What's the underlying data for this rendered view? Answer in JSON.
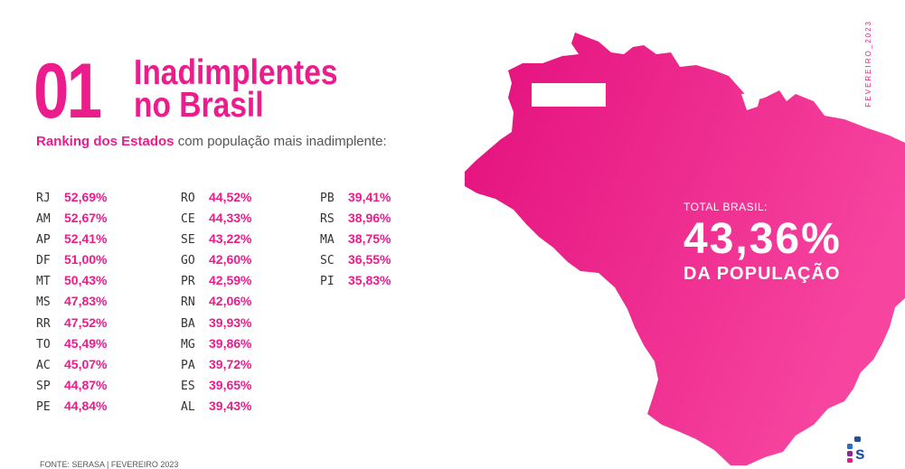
{
  "heading": {
    "number": "01",
    "title_line1": "Inadimplentes",
    "title_line2": "no Brasil"
  },
  "subtitle": {
    "highlight": "Ranking dos Estados",
    "rest": "com população mais inadimplente:"
  },
  "ranking": {
    "col1": [
      {
        "uf": "RJ",
        "pct": "52,69%"
      },
      {
        "uf": "AM",
        "pct": "52,67%"
      },
      {
        "uf": "AP",
        "pct": "52,41%"
      },
      {
        "uf": "DF",
        "pct": "51,00%"
      },
      {
        "uf": "MT",
        "pct": "50,43%"
      },
      {
        "uf": "MS",
        "pct": "47,83%"
      },
      {
        "uf": "RR",
        "pct": "47,52%"
      },
      {
        "uf": "TO",
        "pct": "45,49%"
      },
      {
        "uf": "AC",
        "pct": "45,07%"
      },
      {
        "uf": "SP",
        "pct": "44,87%"
      },
      {
        "uf": "PE",
        "pct": "44,84%"
      }
    ],
    "col2": [
      {
        "uf": "RO",
        "pct": "44,52%"
      },
      {
        "uf": "CE",
        "pct": "44,33%"
      },
      {
        "uf": "SE",
        "pct": "43,22%"
      },
      {
        "uf": "GO",
        "pct": "42,60%"
      },
      {
        "uf": "PR",
        "pct": "42,59%"
      },
      {
        "uf": "RN",
        "pct": "42,06%"
      },
      {
        "uf": "BA",
        "pct": "39,93%"
      },
      {
        "uf": "MG",
        "pct": "39,86%"
      },
      {
        "uf": "PA",
        "pct": "39,72%"
      },
      {
        "uf": "ES",
        "pct": "39,65%"
      },
      {
        "uf": "AL",
        "pct": "39,43%"
      }
    ],
    "col3": [
      {
        "uf": "PB",
        "pct": "39,41%"
      },
      {
        "uf": "RS",
        "pct": "38,96%"
      },
      {
        "uf": "MA",
        "pct": "38,75%"
      },
      {
        "uf": "SC",
        "pct": "36,55%"
      },
      {
        "uf": "PI",
        "pct": "35,83%"
      }
    ]
  },
  "total": {
    "label": "TOTAL BRASIL:",
    "value": "43,36%",
    "sub": "DA POPULAÇÃO"
  },
  "date_vertical": "FEVEREIRO_2023",
  "source": "FONTE: SERASA | FEVEREIRO 2023",
  "colors": {
    "accent": "#ec1c8c",
    "map_light": "#f33a98",
    "map_dark": "#e8157f"
  },
  "icons": {
    "map": "brazil-map",
    "logo": "serasa-logo"
  }
}
